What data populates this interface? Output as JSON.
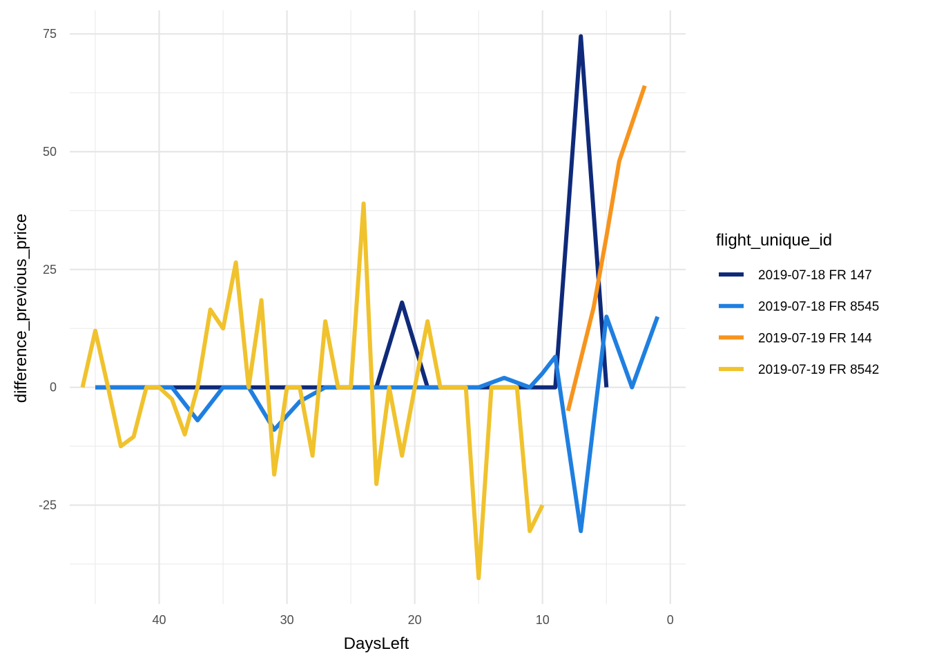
{
  "chart_data": {
    "type": "line",
    "xlabel": "DaysLeft",
    "ylabel": "difference_previous_price",
    "xlim": [
      47,
      -1.2
    ],
    "ylim": [
      -46,
      80
    ],
    "x_reversed": true,
    "x_ticks": [
      40,
      30,
      20,
      10,
      0
    ],
    "y_ticks": [
      75,
      50,
      25,
      0,
      -25
    ],
    "legend_title": "flight_unique_id",
    "legend_position": "right",
    "grid": true,
    "series": [
      {
        "name": "2019-07-18 FR 147",
        "color": "#0f2a7a",
        "x": [
          45,
          44,
          43,
          42,
          41,
          40,
          39,
          38,
          37,
          36,
          35,
          34,
          33,
          32,
          31,
          30,
          29,
          28,
          27,
          26,
          25,
          24,
          23,
          22,
          21,
          20,
          19,
          18,
          17,
          16,
          15,
          14,
          13,
          12,
          11,
          10,
          9,
          8,
          7,
          6,
          5
        ],
        "y": [
          0,
          0,
          0,
          0,
          0,
          0,
          0,
          0,
          0,
          0,
          0,
          0,
          0,
          0,
          0,
          0,
          0,
          0,
          0,
          0,
          0,
          0,
          0,
          9,
          18,
          9,
          0,
          0,
          0,
          0,
          0,
          0,
          0,
          0,
          0,
          0,
          0,
          37,
          74.5,
          37,
          0
        ]
      },
      {
        "name": "2019-07-18 FR 8545",
        "color": "#1f7fe0",
        "x": [
          45,
          44,
          43,
          42,
          41,
          40,
          39,
          38,
          37,
          36,
          35,
          34,
          33,
          32,
          31,
          30,
          29,
          28,
          27,
          26,
          25,
          24,
          23,
          22,
          21,
          20,
          19,
          18,
          17,
          16,
          15,
          14,
          13,
          12,
          11,
          10,
          9,
          8,
          7,
          6,
          5,
          4,
          3,
          2,
          1
        ],
        "y": [
          0,
          0,
          0,
          0,
          0,
          0,
          0,
          -3.5,
          -7,
          -3.5,
          0,
          0,
          0,
          -4.5,
          -9,
          -6,
          -3,
          -1.5,
          0,
          0,
          0,
          0,
          0,
          0,
          0,
          0,
          0,
          0,
          0,
          0,
          0,
          1,
          2,
          1,
          0,
          3,
          6.5,
          -12,
          -30.5,
          -7.5,
          15,
          7.5,
          0,
          7.5,
          15
        ]
      },
      {
        "name": "2019-07-19 FR 144",
        "color": "#f7941d",
        "x": [
          8,
          7,
          6,
          5,
          4,
          3,
          2
        ],
        "y": [
          -5,
          6,
          17,
          32,
          48,
          56,
          64
        ]
      },
      {
        "name": "2019-07-19 FR 8542",
        "color": "#f0c22d",
        "x": [
          46,
          45,
          44,
          43,
          42,
          41,
          40,
          39,
          38,
          37,
          36,
          35,
          34,
          33,
          32,
          31,
          30,
          29,
          28,
          27,
          26,
          25,
          24,
          23,
          22,
          21,
          20,
          19,
          18,
          17,
          16,
          15,
          14,
          13,
          12,
          11,
          10
        ],
        "y": [
          0,
          12,
          0,
          -12.5,
          -10.5,
          0,
          0,
          -2.5,
          -10,
          0,
          16.5,
          12.5,
          26.5,
          0,
          18.5,
          -18.5,
          0,
          0,
          -14.5,
          14,
          0,
          0,
          39,
          -20.5,
          0,
          -14.5,
          0,
          14,
          0,
          0,
          0,
          -40.5,
          0,
          0,
          0,
          -30.5,
          -25
        ]
      }
    ]
  }
}
